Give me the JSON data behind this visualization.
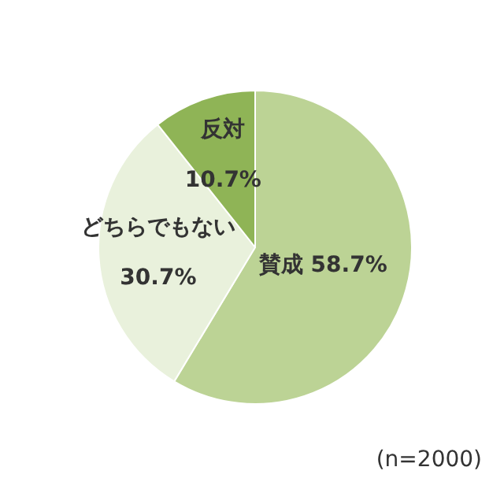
{
  "chart_data": {
    "type": "pie",
    "categories": [
      "賛成",
      "どちらでもない",
      "反対"
    ],
    "values": [
      58.7,
      30.7,
      10.7
    ],
    "value_labels": [
      "58.7%",
      "30.7%",
      "10.7%"
    ],
    "colors": [
      "#bcd395",
      "#e9f1dc",
      "#8fb456"
    ],
    "annotations": [
      "(n=2000)"
    ],
    "legend": false
  }
}
